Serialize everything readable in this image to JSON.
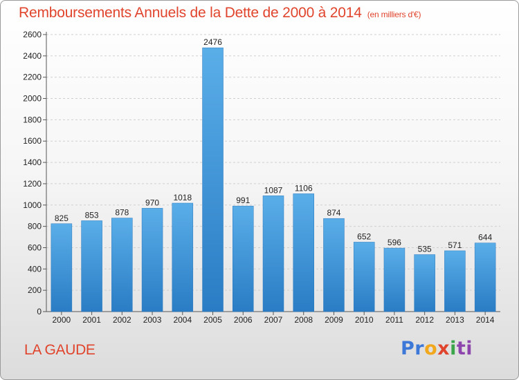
{
  "title": {
    "main": "Remboursements Annuels de la Dette de 2000 à 2014",
    "unit": "(en milliers d'€)"
  },
  "place": "LA GAUDE",
  "logo": {
    "parts": [
      "Pr",
      "o",
      "x",
      "i",
      "ti"
    ],
    "colors": [
      "#3c78d8",
      "#f2a81d",
      "#e0442c",
      "#3aa54a",
      "#8e44ad"
    ]
  },
  "chart_data": {
    "type": "bar",
    "title": "Remboursements Annuels de la Dette de 2000 à 2014",
    "subtitle": "(en milliers d'€)",
    "xlabel": "",
    "ylabel": "",
    "categories": [
      "2000",
      "2001",
      "2002",
      "2003",
      "2004",
      "2005",
      "2006",
      "2007",
      "2008",
      "2009",
      "2010",
      "2011",
      "2012",
      "2013",
      "2014"
    ],
    "values": [
      825,
      853,
      878,
      970,
      1018,
      2476,
      991,
      1087,
      1106,
      874,
      652,
      596,
      535,
      571,
      644
    ],
    "ylim": [
      0,
      2600
    ],
    "yticks": [
      0,
      200,
      400,
      600,
      800,
      1000,
      1200,
      1400,
      1600,
      1800,
      2000,
      2200,
      2400,
      2600
    ],
    "grid": true,
    "bar_color": "#3d92dc",
    "legend": "none"
  }
}
